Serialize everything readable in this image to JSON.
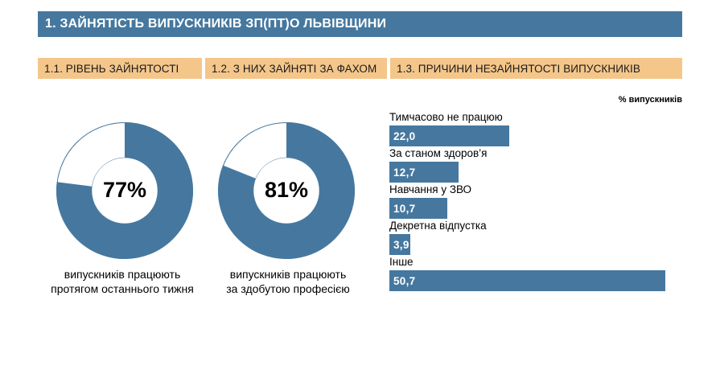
{
  "header": {
    "title": "1. ЗАЙНЯТІСТЬ ВИПУСКНИКІВ ЗП(ПТ)О ЛЬВІВЩИНИ"
  },
  "sections": [
    {
      "label": "1.1. РІВЕНЬ ЗАЙНЯТОСТІ"
    },
    {
      "label": "1.2. З НИХ ЗАЙНЯТІ ЗА ФАХОМ"
    },
    {
      "label": "1.3. ПРИЧИНИ НЕЗАЙНЯТОСТІ ВИПУСКНИКІВ"
    }
  ],
  "colors": {
    "header_bg": "#46789f",
    "header_text": "#ffffff",
    "section_bg": "#f5c68a",
    "section_text": "#1a1a1a",
    "donut_fill": "#46789f",
    "donut_rest": "#ffffff",
    "bar_fill": "#46789f",
    "bar_text": "#ffffff"
  },
  "chart_data": [
    {
      "type": "pie",
      "value": 77,
      "value_label": "77%",
      "caption": "випускників працюють\nпротягом останнього тижня"
    },
    {
      "type": "pie",
      "value": 81,
      "value_label": "81%",
      "caption": "випускників працюють\nза здобутою  професією"
    },
    {
      "type": "bar",
      "orientation": "horizontal",
      "unit": "% випускників",
      "categories": [
        "Тимчасово не працюю",
        "За станом здоров’я",
        "Навчання у ЗВО",
        "Декретна відпустка",
        "Інше"
      ],
      "values": [
        22.0,
        12.7,
        10.7,
        3.9,
        50.7
      ],
      "value_labels": [
        "22,0",
        "12,7",
        "10,7",
        "3,9",
        "50,7"
      ],
      "xlim": [
        0,
        50.7
      ]
    }
  ]
}
